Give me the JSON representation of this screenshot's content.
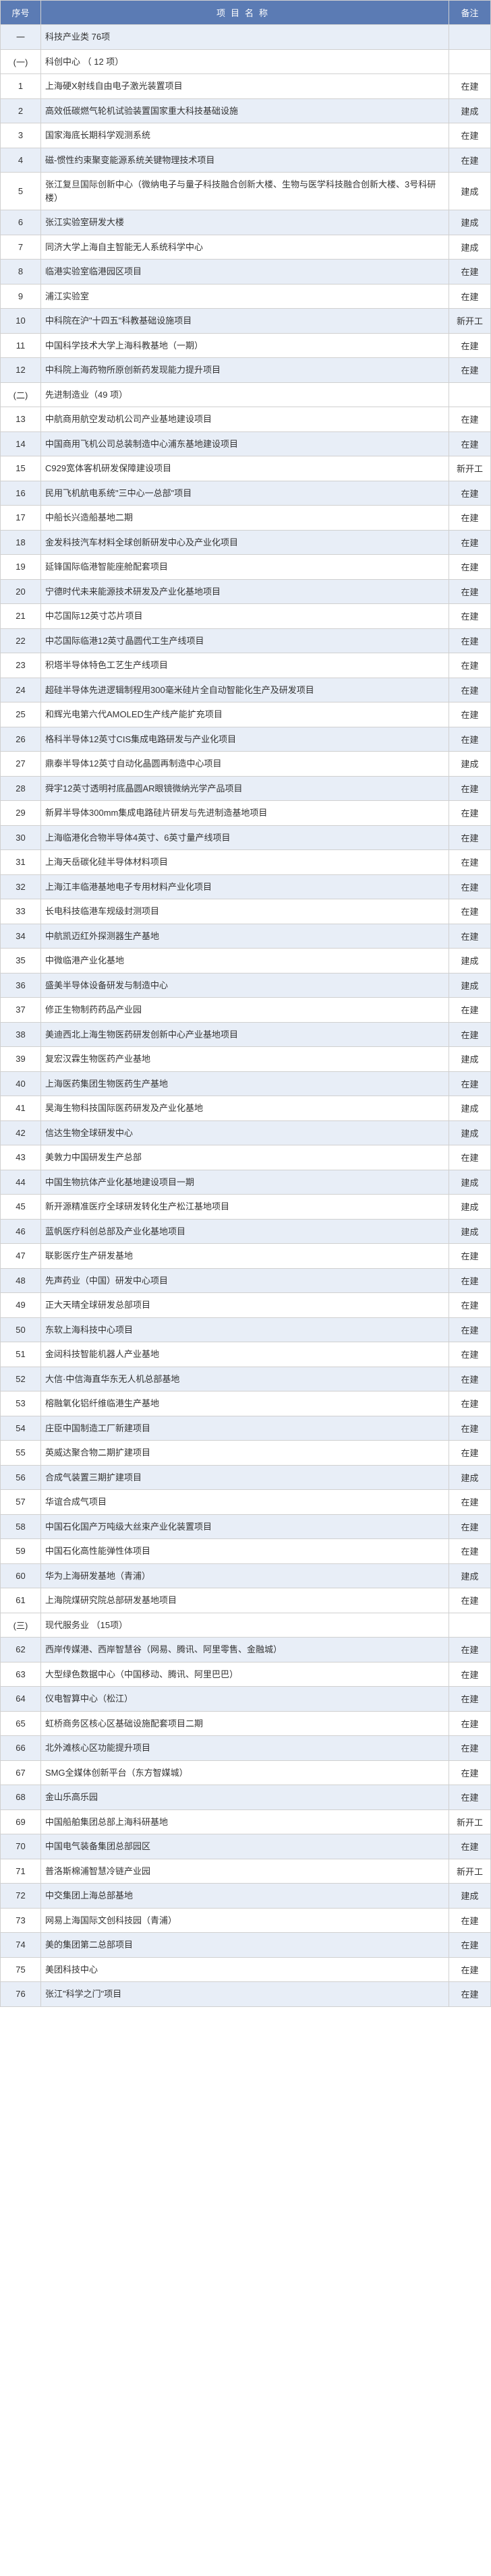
{
  "headers": {
    "seq": "序号",
    "name": "项目名称",
    "status": "备注"
  },
  "rows": [
    {
      "type": "section",
      "seq": "一",
      "name": "科技产业类  76项",
      "status": ""
    },
    {
      "type": "subsection",
      "seq": "(一)",
      "name": "科创中心 （ 12 项）",
      "status": ""
    },
    {
      "type": "item",
      "seq": "1",
      "name": "上海硬X射线自由电子激光装置项目",
      "status": "在建"
    },
    {
      "type": "item",
      "seq": "2",
      "name": "高效低碳燃气轮机试验装置国家重大科技基础设施",
      "status": "建成"
    },
    {
      "type": "item",
      "seq": "3",
      "name": "国家海底长期科学观测系统",
      "status": "在建"
    },
    {
      "type": "item",
      "seq": "4",
      "name": "磁-惯性约束聚变能源系统关键物理技术项目",
      "status": "在建"
    },
    {
      "type": "item",
      "seq": "5",
      "name": "张江复旦国际创新中心（微纳电子与量子科技融合创新大楼、生物与医学科技融合创新大楼、3号科研楼）",
      "status": "建成"
    },
    {
      "type": "item",
      "seq": "6",
      "name": "张江实验室研发大楼",
      "status": "建成"
    },
    {
      "type": "item",
      "seq": "7",
      "name": "同济大学上海自主智能无人系统科学中心",
      "status": "建成"
    },
    {
      "type": "item",
      "seq": "8",
      "name": "临港实验室临港园区项目",
      "status": "在建"
    },
    {
      "type": "item",
      "seq": "9",
      "name": "浦江实验室",
      "status": "在建"
    },
    {
      "type": "item",
      "seq": "10",
      "name": "中科院在沪\"十四五\"科教基础设施项目",
      "status": "新开工"
    },
    {
      "type": "item",
      "seq": "11",
      "name": "中国科学技术大学上海科教基地（一期）",
      "status": "在建"
    },
    {
      "type": "item",
      "seq": "12",
      "name": "中科院上海药物所原创新药发现能力提升项目",
      "status": "在建"
    },
    {
      "type": "subsection",
      "seq": "(二)",
      "name": "先进制造业（49 项）",
      "status": ""
    },
    {
      "type": "item",
      "seq": "13",
      "name": "中航商用航空发动机公司产业基地建设项目",
      "status": "在建"
    },
    {
      "type": "item",
      "seq": "14",
      "name": "中国商用飞机公司总装制造中心浦东基地建设项目",
      "status": "在建"
    },
    {
      "type": "item",
      "seq": "15",
      "name": "C929宽体客机研发保障建设项目",
      "status": "新开工"
    },
    {
      "type": "item",
      "seq": "16",
      "name": "民用飞机航电系统\"三中心一总部\"项目",
      "status": "在建"
    },
    {
      "type": "item",
      "seq": "17",
      "name": "中船长兴造船基地二期",
      "status": "在建"
    },
    {
      "type": "item",
      "seq": "18",
      "name": "金发科技汽车材料全球创新研发中心及产业化项目",
      "status": "在建"
    },
    {
      "type": "item",
      "seq": "19",
      "name": "延锋国际临港智能座舱配套项目",
      "status": "在建"
    },
    {
      "type": "item",
      "seq": "20",
      "name": "宁德时代未来能源技术研发及产业化基地项目",
      "status": "在建"
    },
    {
      "type": "item",
      "seq": "21",
      "name": "中芯国际12英寸芯片项目",
      "status": "在建"
    },
    {
      "type": "item",
      "seq": "22",
      "name": "中芯国际临港12英寸晶圆代工生产线项目",
      "status": "在建"
    },
    {
      "type": "item",
      "seq": "23",
      "name": "积塔半导体特色工艺生产线项目",
      "status": "在建"
    },
    {
      "type": "item",
      "seq": "24",
      "name": "超硅半导体先进逻辑制程用300毫米硅片全自动智能化生产及研发项目",
      "status": "在建"
    },
    {
      "type": "item",
      "seq": "25",
      "name": "和辉光电第六代AMOLED生产线产能扩充项目",
      "status": "在建"
    },
    {
      "type": "item",
      "seq": "26",
      "name": "格科半导体12英寸CIS集成电路研发与产业化项目",
      "status": "在建"
    },
    {
      "type": "item",
      "seq": "27",
      "name": "鼎泰半导体12英寸自动化晶圆再制造中心项目",
      "status": "建成"
    },
    {
      "type": "item",
      "seq": "28",
      "name": "舜宇12英寸透明衬底晶圆AR眼镜微纳光学产品项目",
      "status": "在建"
    },
    {
      "type": "item",
      "seq": "29",
      "name": "新昇半导体300mm集成电路硅片研发与先进制造基地项目",
      "status": "在建"
    },
    {
      "type": "item",
      "seq": "30",
      "name": "上海临港化合物半导体4英寸、6英寸量产线项目",
      "status": "在建"
    },
    {
      "type": "item",
      "seq": "31",
      "name": "上海天岳碳化硅半导体材料项目",
      "status": "在建"
    },
    {
      "type": "item",
      "seq": "32",
      "name": "上海江丰临港基地电子专用材料产业化项目",
      "status": "在建"
    },
    {
      "type": "item",
      "seq": "33",
      "name": "长电科技临港车规级封测项目",
      "status": "在建"
    },
    {
      "type": "item",
      "seq": "34",
      "name": "中航凯迈红外探测器生产基地",
      "status": "在建"
    },
    {
      "type": "item",
      "seq": "35",
      "name": "中微临港产业化基地",
      "status": "建成"
    },
    {
      "type": "item",
      "seq": "36",
      "name": "盛美半导体设备研发与制造中心",
      "status": "建成"
    },
    {
      "type": "item",
      "seq": "37",
      "name": "修正生物制药药品产业园",
      "status": "在建"
    },
    {
      "type": "item",
      "seq": "38",
      "name": "美迪西北上海生物医药研发创新中心产业基地项目",
      "status": "在建"
    },
    {
      "type": "item",
      "seq": "39",
      "name": "复宏汉霖生物医药产业基地",
      "status": "建成"
    },
    {
      "type": "item",
      "seq": "40",
      "name": "上海医药集团生物医药生产基地",
      "status": "在建"
    },
    {
      "type": "item",
      "seq": "41",
      "name": "昊海生物科技国际医药研发及产业化基地",
      "status": "建成"
    },
    {
      "type": "item",
      "seq": "42",
      "name": "信达生物全球研发中心",
      "status": "建成"
    },
    {
      "type": "item",
      "seq": "43",
      "name": "美敦力中国研发生产总部",
      "status": "在建"
    },
    {
      "type": "item",
      "seq": "44",
      "name": "中国生物抗体产业化基地建设项目一期",
      "status": "建成"
    },
    {
      "type": "item",
      "seq": "45",
      "name": "新开源精准医疗全球研发转化生产松江基地项目",
      "status": "建成"
    },
    {
      "type": "item",
      "seq": "46",
      "name": "蓝帆医疗科创总部及产业化基地项目",
      "status": "建成"
    },
    {
      "type": "item",
      "seq": "47",
      "name": "联影医疗生产研发基地",
      "status": "在建"
    },
    {
      "type": "item",
      "seq": "48",
      "name": "先声药业（中国）研发中心项目",
      "status": "在建"
    },
    {
      "type": "item",
      "seq": "49",
      "name": "正大天晴全球研发总部项目",
      "status": "在建"
    },
    {
      "type": "item",
      "seq": "50",
      "name": "东软上海科技中心项目",
      "status": "在建"
    },
    {
      "type": "item",
      "seq": "51",
      "name": "金闼科技智能机器人产业基地",
      "status": "在建"
    },
    {
      "type": "item",
      "seq": "52",
      "name": "大信·中信海直华东无人机总部基地",
      "status": "在建"
    },
    {
      "type": "item",
      "seq": "53",
      "name": "榕融氧化铝纤维临港生产基地",
      "status": "在建"
    },
    {
      "type": "item",
      "seq": "54",
      "name": "庄臣中国制造工厂新建项目",
      "status": "在建"
    },
    {
      "type": "item",
      "seq": "55",
      "name": "英威达聚合物二期扩建项目",
      "status": "在建"
    },
    {
      "type": "item",
      "seq": "56",
      "name": "合成气装置三期扩建项目",
      "status": "建成"
    },
    {
      "type": "item",
      "seq": "57",
      "name": "华谊合成气项目",
      "status": "在建"
    },
    {
      "type": "item",
      "seq": "58",
      "name": "中国石化国产万吨级大丝束产业化装置项目",
      "status": "在建"
    },
    {
      "type": "item",
      "seq": "59",
      "name": "中国石化高性能弹性体项目",
      "status": "在建"
    },
    {
      "type": "item",
      "seq": "60",
      "name": "华为上海研发基地（青浦）",
      "status": "建成"
    },
    {
      "type": "item",
      "seq": "61",
      "name": "上海院煤研究院总部研发基地项目",
      "status": "在建"
    },
    {
      "type": "subsection",
      "seq": "(三)",
      "name": "现代服务业  （15项）",
      "status": ""
    },
    {
      "type": "item",
      "seq": "62",
      "name": "西岸传媒港、西岸智慧谷（网易、腾讯、阿里零售、金融城）",
      "status": "在建"
    },
    {
      "type": "item",
      "seq": "63",
      "name": "大型绿色数据中心（中国移动、腾讯、阿里巴巴）",
      "status": "在建"
    },
    {
      "type": "item",
      "seq": "64",
      "name": "仪电智算中心（松江）",
      "status": "在建"
    },
    {
      "type": "item",
      "seq": "65",
      "name": "虹桥商务区核心区基础设施配套项目二期",
      "status": "在建"
    },
    {
      "type": "item",
      "seq": "66",
      "name": "北外滩核心区功能提升项目",
      "status": "在建"
    },
    {
      "type": "item",
      "seq": "67",
      "name": "SMG全媒体创新平台（东方智媒城）",
      "status": "在建"
    },
    {
      "type": "item",
      "seq": "68",
      "name": "金山乐高乐园",
      "status": "在建"
    },
    {
      "type": "item",
      "seq": "69",
      "name": "中国船舶集团总部上海科研基地",
      "status": "新开工"
    },
    {
      "type": "item",
      "seq": "70",
      "name": "中国电气装备集团总部园区",
      "status": "在建"
    },
    {
      "type": "item",
      "seq": "71",
      "name": "普洛斯棉浦智慧冷链产业园",
      "status": "新开工"
    },
    {
      "type": "item",
      "seq": "72",
      "name": "中交集团上海总部基地",
      "status": "建成"
    },
    {
      "type": "item",
      "seq": "73",
      "name": "网易上海国际文创科技园（青浦）",
      "status": "在建"
    },
    {
      "type": "item",
      "seq": "74",
      "name": "美的集团第二总部项目",
      "status": "在建"
    },
    {
      "type": "item",
      "seq": "75",
      "name": "美团科技中心",
      "status": "在建"
    },
    {
      "type": "item",
      "seq": "76",
      "name": "张江\"科学之门\"项目",
      "status": "在建"
    }
  ]
}
